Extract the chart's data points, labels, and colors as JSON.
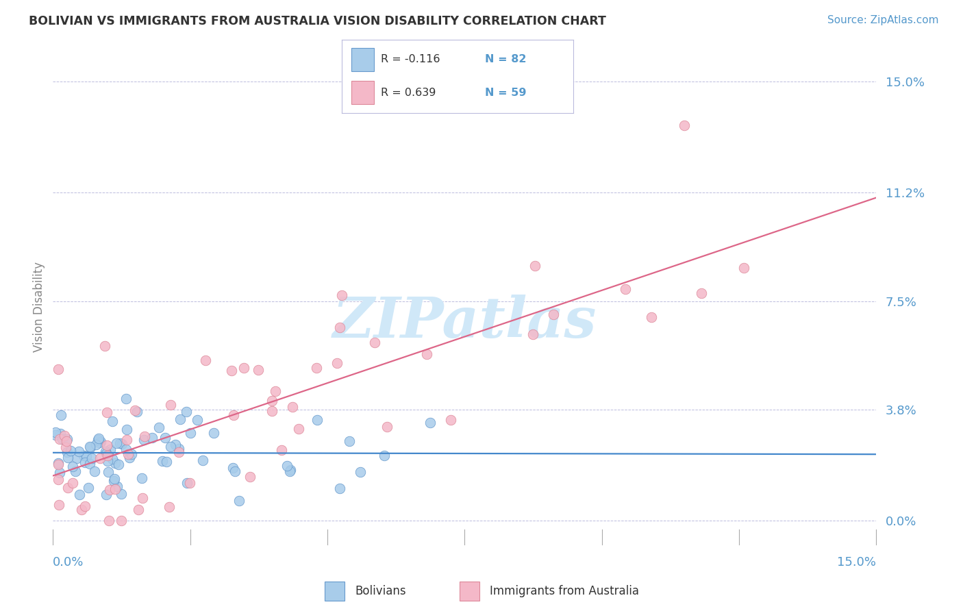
{
  "title": "BOLIVIAN VS IMMIGRANTS FROM AUSTRALIA VISION DISABILITY CORRELATION CHART",
  "source": "Source: ZipAtlas.com",
  "ylabel": "Vision Disability",
  "xlim": [
    0.0,
    0.15
  ],
  "ylim": [
    -0.012,
    0.158
  ],
  "ytick_vals": [
    0.0,
    0.038,
    0.075,
    0.112,
    0.15
  ],
  "ytick_labels": [
    "0.0%",
    "3.8%",
    "7.5%",
    "11.2%",
    "15.0%"
  ],
  "legend_r1": "R = -0.116",
  "legend_n1": "N = 82",
  "legend_r2": "R = 0.639",
  "legend_n2": "N = 59",
  "color_bolivian_fill": "#A8CCEA",
  "color_bolivian_edge": "#6699CC",
  "color_australia_fill": "#F4B8C8",
  "color_australia_edge": "#DD8899",
  "color_line_bolivian": "#4488CC",
  "color_line_australia": "#DD6688",
  "watermark_color": "#D0E8F8",
  "tick_label_color": "#5599CC",
  "title_color": "#333333",
  "ylabel_color": "#888888"
}
